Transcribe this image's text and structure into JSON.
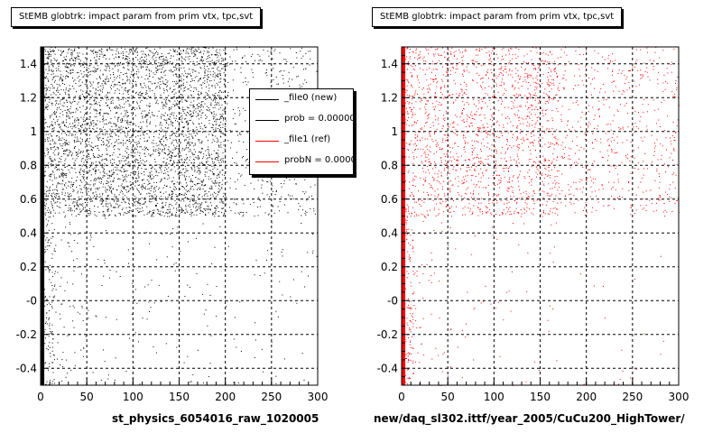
{
  "chart_data": [
    {
      "type": "scatter",
      "title": "StEMB globtrk: impact param from prim vtx, tpc,svt",
      "xlabel": "st_physics_6054016_raw_1020005",
      "ylabel": "",
      "xlim": [
        0,
        300
      ],
      "ylim": [
        -0.5,
        1.5
      ],
      "x_ticks": [
        0,
        50,
        100,
        150,
        200,
        250,
        300
      ],
      "y_ticks": [
        -0.4,
        -0.2,
        0,
        0.2,
        0.4,
        0.6,
        0.8,
        1,
        1.2,
        1.4
      ],
      "y_tick_labels": [
        "-0.4",
        "-0.2",
        "-0",
        "0.2",
        "0.4",
        "0.6",
        "0.8",
        "1",
        "1.2",
        "1.4"
      ],
      "grid": true,
      "marker_color": "#000000",
      "series": [
        {
          "name": "_file0 (new)",
          "density_regions": [
            {
              "x": [
                0,
                2
              ],
              "y": [
                -0.5,
                1.5
              ],
              "level": "saturated"
            },
            {
              "x": [
                2,
                12
              ],
              "y": [
                -0.5,
                0.5
              ],
              "level": "medium"
            },
            {
              "x": [
                12,
                300
              ],
              "y": [
                -0.5,
                0.5
              ],
              "level": "sparse"
            },
            {
              "x": [
                2,
                200
              ],
              "y": [
                0.5,
                1.5
              ],
              "level": "dense"
            },
            {
              "x": [
                200,
                300
              ],
              "y": [
                0.5,
                1.5
              ],
              "level": "light"
            }
          ]
        }
      ],
      "legend": {
        "placement": "top-right",
        "entries": [
          {
            "label": "_file0 (new)",
            "color": "#000000"
          },
          {
            "label": "prob = 0.000000",
            "color": "#000000"
          },
          {
            "label": "_file1 (ref)",
            "color": "#ff0000"
          },
          {
            "label": "probN = 0.000000",
            "color": "#ff0000"
          }
        ]
      }
    },
    {
      "type": "scatter",
      "title": "StEMB globtrk: impact param from prim vtx, tpc,svt",
      "xlabel": "new/daq_sl302.ittf/year_2005/CuCu200_HighTower/",
      "ylabel": "",
      "xlim": [
        0,
        300
      ],
      "ylim": [
        -0.5,
        1.5
      ],
      "x_ticks": [
        0,
        50,
        100,
        150,
        200,
        250,
        300
      ],
      "y_ticks": [
        -0.4,
        -0.2,
        0,
        0.2,
        0.4,
        0.6,
        0.8,
        1,
        1.2,
        1.4
      ],
      "y_tick_labels": [
        "-0.4",
        "-0.2",
        "-0",
        "0.2",
        "0.4",
        "0.6",
        "0.8",
        "1",
        "1.2",
        "1.4"
      ],
      "grid": true,
      "marker_color": "#ff0000",
      "series": [
        {
          "name": "_file1 (ref)",
          "density_regions": [
            {
              "x": [
                0,
                2
              ],
              "y": [
                -0.5,
                1.5
              ],
              "level": "saturated"
            },
            {
              "x": [
                2,
                12
              ],
              "y": [
                -0.5,
                0.5
              ],
              "level": "medium"
            },
            {
              "x": [
                12,
                300
              ],
              "y": [
                -0.5,
                0.5
              ],
              "level": "very sparse"
            },
            {
              "x": [
                2,
                170
              ],
              "y": [
                0.5,
                1.5
              ],
              "level": "medium"
            },
            {
              "x": [
                170,
                300
              ],
              "y": [
                0.5,
                1.5
              ],
              "level": "light"
            }
          ]
        }
      ]
    }
  ]
}
